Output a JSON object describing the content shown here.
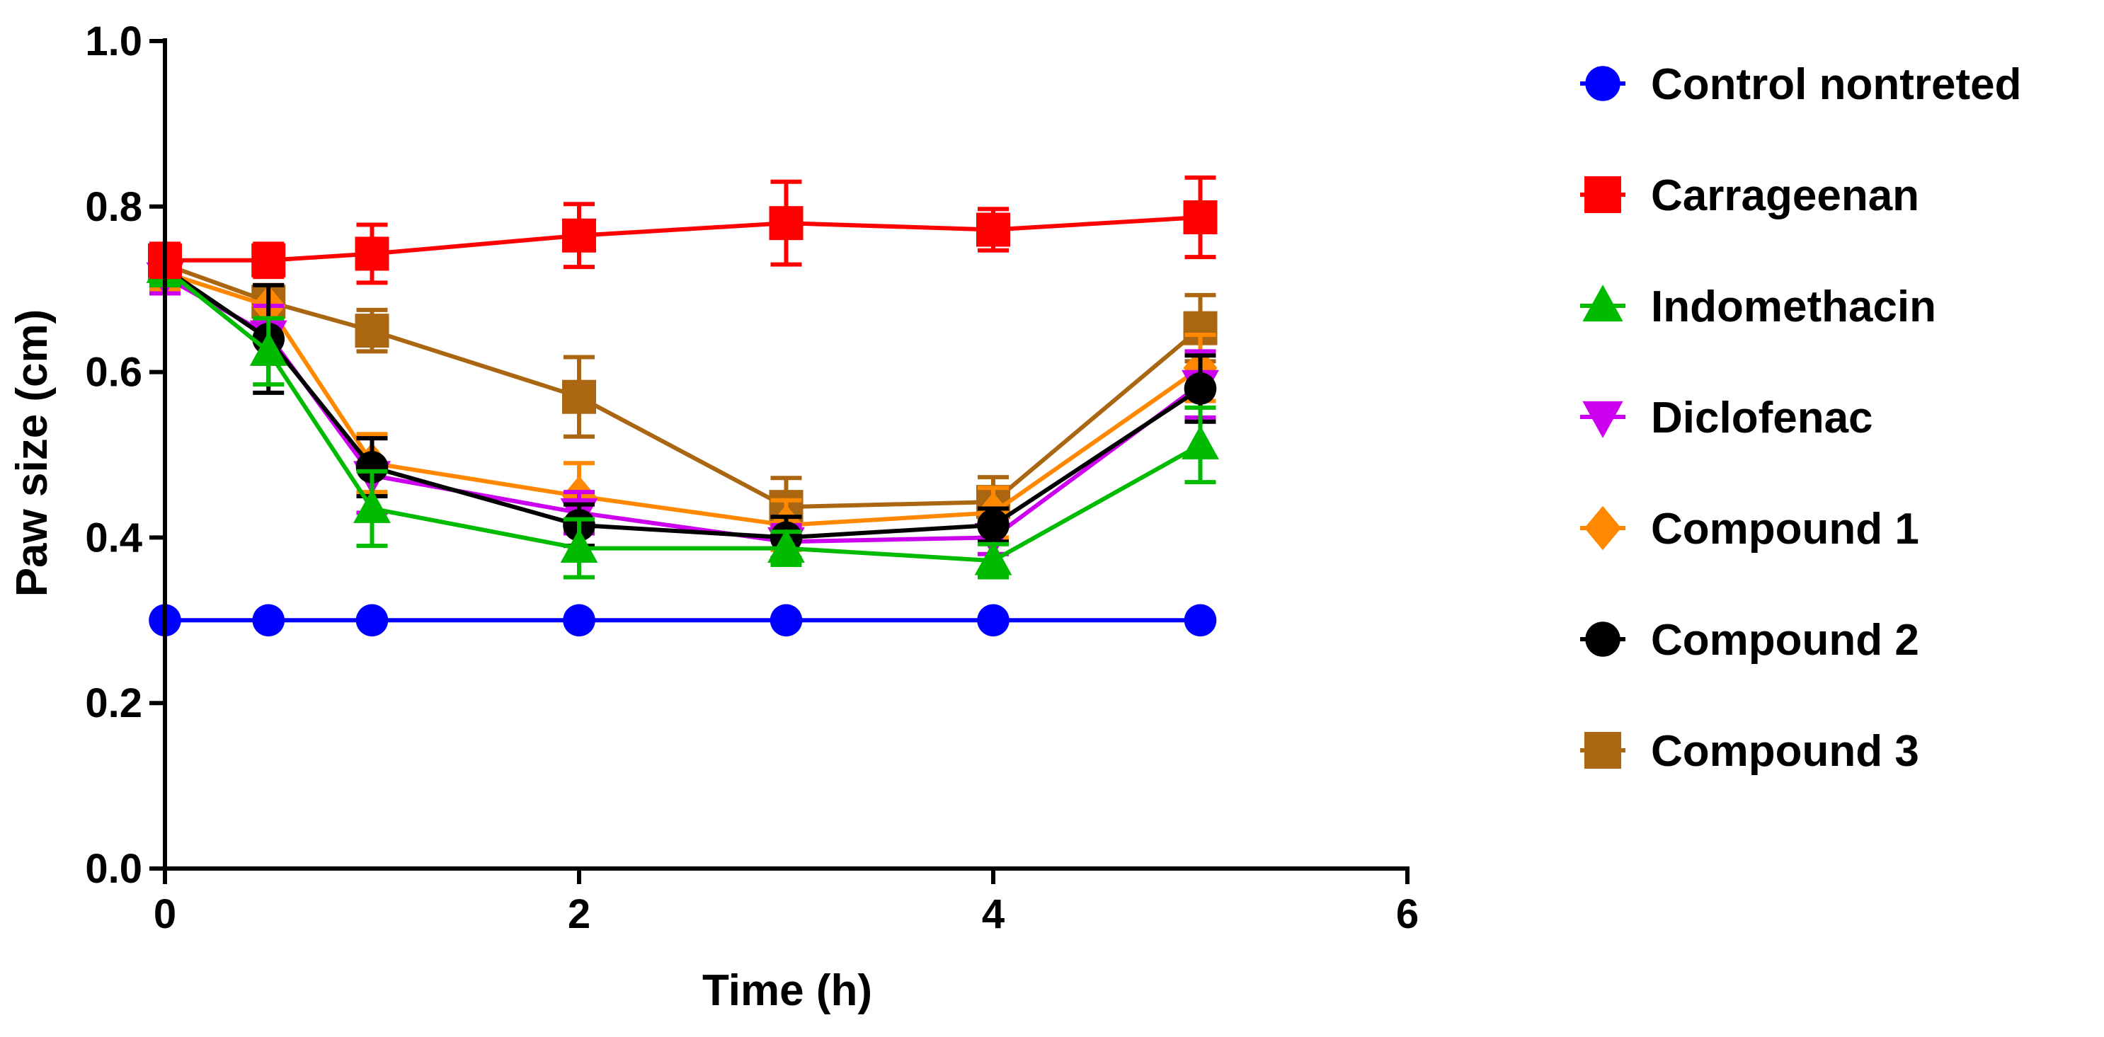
{
  "chart_data": {
    "type": "line",
    "title": "",
    "xlabel": "Time (h)",
    "ylabel": "Paw size (cm)",
    "xlim": [
      0,
      6
    ],
    "ylim": [
      0.0,
      1.0
    ],
    "x_ticks": [
      0,
      2,
      4,
      6
    ],
    "x_tick_labels": [
      "0",
      "2",
      "4",
      "6"
    ],
    "y_ticks": [
      0.0,
      0.2,
      0.4,
      0.6,
      0.8,
      1.0
    ],
    "y_tick_labels": [
      "0.0",
      "0.2",
      "0.4",
      "0.6",
      "0.8",
      "1.0"
    ],
    "grid": false,
    "legend_position": "right",
    "x": [
      0,
      0.5,
      1,
      2,
      3,
      4,
      5
    ],
    "series": [
      {
        "name": "Control nontreted",
        "color": "#0000ff",
        "marker": "circle",
        "values": [
          0.3,
          0.3,
          0.3,
          0.3,
          0.3,
          0.3,
          0.3
        ],
        "error": [
          0,
          0,
          0,
          0,
          0,
          0,
          0
        ]
      },
      {
        "name": "Carrageenan",
        "color": "#ff0000",
        "marker": "square",
        "values": [
          0.735,
          0.735,
          0.743,
          0.765,
          0.78,
          0.772,
          0.787
        ],
        "error": [
          0.02,
          0.02,
          0.035,
          0.038,
          0.05,
          0.025,
          0.048
        ]
      },
      {
        "name": "Indomethacin",
        "color": "#00bb00",
        "marker": "triangle-up",
        "values": [
          0.725,
          0.625,
          0.435,
          0.387,
          0.387,
          0.372,
          0.512
        ],
        "error": [
          0.02,
          0.04,
          0.045,
          0.035,
          0.02,
          0.02,
          0.045
        ]
      },
      {
        "name": "Diclofenac",
        "color": "#cc00ee",
        "marker": "triangle-down",
        "values": [
          0.715,
          0.645,
          0.475,
          0.43,
          0.395,
          0.4,
          0.585
        ],
        "error": [
          0.02,
          0.035,
          0.045,
          0.025,
          0.02,
          0.02,
          0.04
        ]
      },
      {
        "name": "Compound 1",
        "color": "#ff8800",
        "marker": "diamond",
        "values": [
          0.72,
          0.68,
          0.49,
          0.45,
          0.415,
          0.43,
          0.605
        ],
        "error": [
          0.02,
          0.025,
          0.035,
          0.04,
          0.03,
          0.03,
          0.04
        ]
      },
      {
        "name": "Compound 2",
        "color": "#000000",
        "marker": "circle",
        "values": [
          0.725,
          0.64,
          0.485,
          0.415,
          0.4,
          0.415,
          0.58
        ],
        "error": [
          0.02,
          0.065,
          0.035,
          0.025,
          0.025,
          0.02,
          0.04
        ]
      },
      {
        "name": "Compound 3",
        "color": "#aa6611",
        "marker": "square",
        "values": [
          0.73,
          0.685,
          0.65,
          0.57,
          0.437,
          0.443,
          0.653
        ],
        "error": [
          0.02,
          0.02,
          0.025,
          0.048,
          0.035,
          0.03,
          0.04
        ]
      }
    ]
  }
}
